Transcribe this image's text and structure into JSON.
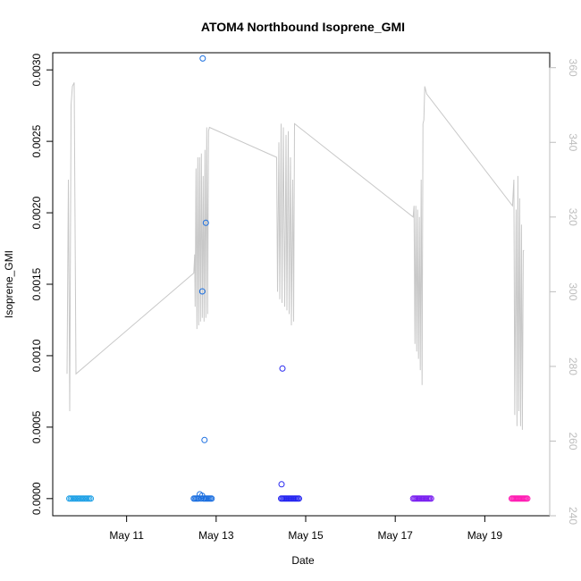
{
  "chart_data": {
    "type": "scatter",
    "title": "ATOM4 Northbound Isoprene_GMI",
    "xlabel": "Date",
    "ylabel": "Isoprene_GMI",
    "xlim": [
      9.35,
      20.45
    ],
    "ylim": [
      -0.00012,
      0.00312
    ],
    "y2lim": [
      240,
      364
    ],
    "x_ticks": [
      {
        "value": 11,
        "label": "May 11"
      },
      {
        "value": 13,
        "label": "May 13"
      },
      {
        "value": 15,
        "label": "May 15"
      },
      {
        "value": 17,
        "label": "May 17"
      },
      {
        "value": 19,
        "label": "May 19"
      }
    ],
    "y_ticks": [
      {
        "value": 0.0,
        "label": "0.0000"
      },
      {
        "value": 0.0005,
        "label": "0.0005"
      },
      {
        "value": 0.001,
        "label": "0.0010"
      },
      {
        "value": 0.0015,
        "label": "0.0015"
      },
      {
        "value": 0.002,
        "label": "0.0020"
      },
      {
        "value": 0.0025,
        "label": "0.0025"
      },
      {
        "value": 0.003,
        "label": "0.0030"
      }
    ],
    "y2_ticks": [
      {
        "value": 240,
        "label": "240"
      },
      {
        "value": 260,
        "label": "260"
      },
      {
        "value": 280,
        "label": "280"
      },
      {
        "value": 300,
        "label": "300"
      },
      {
        "value": 320,
        "label": "320"
      },
      {
        "value": 340,
        "label": "340"
      },
      {
        "value": 360,
        "label": "360"
      }
    ],
    "colors": {
      "frame": "#000000",
      "line": "#c8c8c8",
      "right_axis": "#bdbdbd"
    },
    "point_groups": [
      {
        "x_start": 9.72,
        "x_end": 10.2,
        "color": "#1ea0e6",
        "values": [
          0,
          0,
          0,
          0,
          0,
          0,
          0,
          0,
          0,
          0,
          0,
          0,
          0,
          0,
          0,
          0
        ]
      },
      {
        "x_start": 12.5,
        "x_end": 12.9,
        "color": "#1b6fe0",
        "values": [
          0,
          0,
          0,
          0,
          0,
          3e-05,
          0,
          2e-05,
          0,
          0,
          0,
          0,
          0,
          0,
          0,
          0
        ]
      },
      {
        "x_start": 14.45,
        "x_end": 14.85,
        "color": "#2525f0",
        "values": [
          0,
          0,
          0,
          0,
          0,
          0,
          0,
          0,
          0,
          0,
          0,
          0,
          0,
          0,
          0,
          0
        ]
      },
      {
        "x_start": 17.4,
        "x_end": 17.8,
        "color": "#7a20f0",
        "values": [
          0,
          0,
          0,
          0,
          0,
          0,
          0,
          0,
          0,
          0,
          0,
          0,
          0,
          0,
          0,
          0
        ]
      },
      {
        "x_start": 19.6,
        "x_end": 19.95,
        "color": "#ff1fb4",
        "values": [
          0,
          0,
          0,
          0,
          0,
          0,
          0,
          0,
          0,
          0,
          0,
          0,
          0,
          0,
          0,
          0
        ]
      }
    ],
    "outlier_points": [
      {
        "x": 12.7,
        "y": 0.00308,
        "color": "#1b6fe0"
      },
      {
        "x": 12.77,
        "y": 0.00193,
        "color": "#1b6fe0"
      },
      {
        "x": 12.69,
        "y": 0.00145,
        "color": "#1b6fe0"
      },
      {
        "x": 12.74,
        "y": 0.00041,
        "color": "#1b6fe0"
      },
      {
        "x": 14.48,
        "y": 0.00091,
        "color": "#2525f0"
      },
      {
        "x": 14.46,
        "y": 0.0001,
        "color": "#2525f0"
      }
    ],
    "line_series": {
      "axis": "right",
      "color": "#c8c8c8",
      "points": [
        [
          9.67,
          278
        ],
        [
          9.7,
          330
        ],
        [
          9.73,
          268
        ],
        [
          9.76,
          350
        ],
        [
          9.79,
          355
        ],
        [
          9.83,
          356
        ],
        [
          9.87,
          278
        ],
        [
          12.5,
          305
        ],
        [
          12.52,
          310
        ],
        [
          12.53,
          296
        ],
        [
          12.55,
          333
        ],
        [
          12.57,
          290
        ],
        [
          12.59,
          336
        ],
        [
          12.61,
          291
        ],
        [
          12.63,
          336
        ],
        [
          12.65,
          292
        ],
        [
          12.67,
          337
        ],
        [
          12.69,
          293
        ],
        [
          12.71,
          331
        ],
        [
          12.73,
          292
        ],
        [
          12.75,
          338
        ],
        [
          12.77,
          293
        ],
        [
          12.79,
          344
        ],
        [
          12.81,
          294
        ],
        [
          12.83,
          343
        ],
        [
          12.85,
          344
        ],
        [
          14.35,
          336
        ],
        [
          14.37,
          300
        ],
        [
          14.4,
          340
        ],
        [
          14.42,
          298
        ],
        [
          14.45,
          345
        ],
        [
          14.47,
          297
        ],
        [
          14.5,
          344
        ],
        [
          14.53,
          296
        ],
        [
          14.56,
          342
        ],
        [
          14.58,
          295
        ],
        [
          14.61,
          343
        ],
        [
          14.63,
          294
        ],
        [
          14.66,
          336
        ],
        [
          14.68,
          291
        ],
        [
          14.71,
          330
        ],
        [
          14.73,
          292
        ],
        [
          14.75,
          345
        ],
        [
          17.4,
          320
        ],
        [
          17.42,
          323
        ],
        [
          17.44,
          286
        ],
        [
          17.46,
          323
        ],
        [
          17.48,
          284
        ],
        [
          17.5,
          322
        ],
        [
          17.52,
          282
        ],
        [
          17.54,
          320
        ],
        [
          17.56,
          279
        ],
        [
          17.58,
          330
        ],
        [
          17.6,
          275
        ],
        [
          17.62,
          345
        ],
        [
          17.64,
          346
        ],
        [
          17.66,
          355
        ],
        [
          17.7,
          353
        ],
        [
          19.62,
          323
        ],
        [
          19.65,
          330
        ],
        [
          19.67,
          267
        ],
        [
          19.7,
          322
        ],
        [
          19.72,
          264
        ],
        [
          19.74,
          331
        ],
        [
          19.76,
          268
        ],
        [
          19.78,
          325
        ],
        [
          19.8,
          264
        ],
        [
          19.82,
          318
        ],
        [
          19.84,
          263
        ],
        [
          19.86,
          311
        ],
        [
          19.88,
          311
        ]
      ]
    }
  }
}
